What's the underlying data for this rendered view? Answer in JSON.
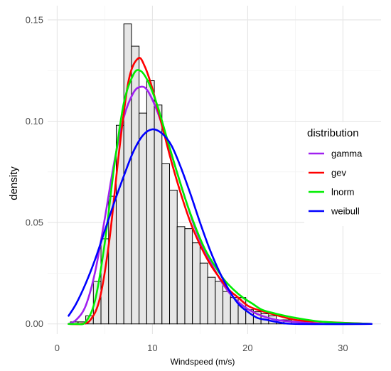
{
  "chart_data": {
    "type": "histogram-with-density-lines",
    "xlabel": "Windspeed (m/s)",
    "ylabel": "density",
    "xlim": [
      -1,
      34
    ],
    "ylim": [
      -0.005,
      0.157
    ],
    "x_ticks": [
      0,
      10,
      20,
      30
    ],
    "y_ticks": [
      0.0,
      0.05,
      0.1,
      0.15
    ],
    "x_tick_labels": [
      "0",
      "10",
      "20",
      "30"
    ],
    "y_tick_labels": [
      "0.00",
      "0.05",
      "0.10",
      "0.15"
    ],
    "grid": true,
    "legend_position": "right",
    "legend_title": "distribution",
    "histogram": {
      "bin_width": 0.8,
      "bins": [
        {
          "x": 1.0,
          "density": 0.0
        },
        {
          "x": 1.8,
          "density": 0.001
        },
        {
          "x": 2.6,
          "density": 0.001
        },
        {
          "x": 3.4,
          "density": 0.004
        },
        {
          "x": 4.2,
          "density": 0.021
        },
        {
          "x": 5.0,
          "density": 0.042
        },
        {
          "x": 5.8,
          "density": 0.063
        },
        {
          "x": 6.6,
          "density": 0.098
        },
        {
          "x": 7.4,
          "density": 0.148
        },
        {
          "x": 8.2,
          "density": 0.137
        },
        {
          "x": 9.0,
          "density": 0.104
        },
        {
          "x": 9.8,
          "density": 0.12
        },
        {
          "x": 10.6,
          "density": 0.108
        },
        {
          "x": 11.4,
          "density": 0.079
        },
        {
          "x": 12.2,
          "density": 0.066
        },
        {
          "x": 13.0,
          "density": 0.048
        },
        {
          "x": 13.8,
          "density": 0.047
        },
        {
          "x": 14.6,
          "density": 0.04
        },
        {
          "x": 15.4,
          "density": 0.03
        },
        {
          "x": 16.2,
          "density": 0.023
        },
        {
          "x": 17.0,
          "density": 0.021
        },
        {
          "x": 17.8,
          "density": 0.016
        },
        {
          "x": 18.6,
          "density": 0.013
        },
        {
          "x": 19.4,
          "density": 0.013
        },
        {
          "x": 20.2,
          "density": 0.007
        },
        {
          "x": 21.0,
          "density": 0.006
        },
        {
          "x": 21.8,
          "density": 0.005
        },
        {
          "x": 22.6,
          "density": 0.004
        },
        {
          "x": 23.4,
          "density": 0.002
        },
        {
          "x": 24.2,
          "density": 0.002
        },
        {
          "x": 25.0,
          "density": 0.001
        },
        {
          "x": 25.8,
          "density": 0.001
        },
        {
          "x": 26.6,
          "density": 0.0
        },
        {
          "x": 27.4,
          "density": 0.0
        },
        {
          "x": 28.2,
          "density": 0.0
        }
      ]
    },
    "series": [
      {
        "name": "gamma",
        "color": "#a020f0",
        "points": [
          [
            1.2,
            0.0
          ],
          [
            2.0,
            0.002
          ],
          [
            3.0,
            0.009
          ],
          [
            4.0,
            0.026
          ],
          [
            5.0,
            0.052
          ],
          [
            6.0,
            0.08
          ],
          [
            7.0,
            0.102
          ],
          [
            8.0,
            0.114
          ],
          [
            8.8,
            0.117
          ],
          [
            9.5,
            0.115
          ],
          [
            10.5,
            0.105
          ],
          [
            11.5,
            0.091
          ],
          [
            12.5,
            0.076
          ],
          [
            13.5,
            0.061
          ],
          [
            14.5,
            0.047
          ],
          [
            15.5,
            0.036
          ],
          [
            16.5,
            0.027
          ],
          [
            17.5,
            0.019
          ],
          [
            18.5,
            0.013
          ],
          [
            19.5,
            0.009
          ],
          [
            20.5,
            0.006
          ],
          [
            21.5,
            0.004
          ],
          [
            23.0,
            0.002
          ],
          [
            25.0,
            0.001
          ],
          [
            28.0,
            0.0
          ],
          [
            33.0,
            0.0
          ]
        ]
      },
      {
        "name": "gev",
        "color": "#ff0000",
        "points": [
          [
            1.2,
            0.0
          ],
          [
            2.5,
            0.0
          ],
          [
            3.5,
            0.002
          ],
          [
            4.5,
            0.013
          ],
          [
            5.5,
            0.042
          ],
          [
            6.5,
            0.085
          ],
          [
            7.5,
            0.12
          ],
          [
            8.5,
            0.131
          ],
          [
            9.2,
            0.127
          ],
          [
            10.0,
            0.116
          ],
          [
            11.0,
            0.098
          ],
          [
            12.0,
            0.08
          ],
          [
            13.0,
            0.064
          ],
          [
            14.0,
            0.05
          ],
          [
            15.0,
            0.039
          ],
          [
            16.0,
            0.03
          ],
          [
            17.0,
            0.023
          ],
          [
            18.0,
            0.017
          ],
          [
            19.0,
            0.013
          ],
          [
            20.0,
            0.009
          ],
          [
            21.0,
            0.007
          ],
          [
            22.5,
            0.005
          ],
          [
            25.0,
            0.002
          ],
          [
            28.0,
            0.001
          ],
          [
            33.0,
            0.0
          ]
        ]
      },
      {
        "name": "lnorm",
        "color": "#00ee00",
        "points": [
          [
            1.2,
            0.0
          ],
          [
            2.0,
            0.0
          ],
          [
            3.0,
            0.001
          ],
          [
            4.0,
            0.012
          ],
          [
            5.0,
            0.04
          ],
          [
            6.0,
            0.078
          ],
          [
            7.0,
            0.109
          ],
          [
            8.0,
            0.123
          ],
          [
            8.7,
            0.125
          ],
          [
            9.5,
            0.12
          ],
          [
            10.5,
            0.108
          ],
          [
            11.5,
            0.092
          ],
          [
            12.5,
            0.076
          ],
          [
            13.5,
            0.061
          ],
          [
            14.5,
            0.048
          ],
          [
            15.5,
            0.037
          ],
          [
            16.5,
            0.029
          ],
          [
            17.5,
            0.022
          ],
          [
            18.5,
            0.017
          ],
          [
            19.5,
            0.013
          ],
          [
            20.5,
            0.01
          ],
          [
            21.5,
            0.007
          ],
          [
            23.0,
            0.005
          ],
          [
            25.0,
            0.003
          ],
          [
            28.0,
            0.001
          ],
          [
            33.0,
            0.0
          ]
        ]
      },
      {
        "name": "weibull",
        "color": "#0000ff",
        "points": [
          [
            1.2,
            0.004
          ],
          [
            2.0,
            0.01
          ],
          [
            3.0,
            0.02
          ],
          [
            4.0,
            0.032
          ],
          [
            5.0,
            0.046
          ],
          [
            6.0,
            0.06
          ],
          [
            7.0,
            0.073
          ],
          [
            8.0,
            0.085
          ],
          [
            9.0,
            0.093
          ],
          [
            10.0,
            0.096
          ],
          [
            11.0,
            0.094
          ],
          [
            12.0,
            0.088
          ],
          [
            13.0,
            0.077
          ],
          [
            14.0,
            0.064
          ],
          [
            15.0,
            0.05
          ],
          [
            16.0,
            0.037
          ],
          [
            17.0,
            0.026
          ],
          [
            18.0,
            0.017
          ],
          [
            19.0,
            0.01
          ],
          [
            20.0,
            0.006
          ],
          [
            21.0,
            0.003
          ],
          [
            22.0,
            0.002
          ],
          [
            23.0,
            0.001
          ],
          [
            25.0,
            0.0
          ],
          [
            33.0,
            0.0
          ]
        ]
      }
    ]
  }
}
